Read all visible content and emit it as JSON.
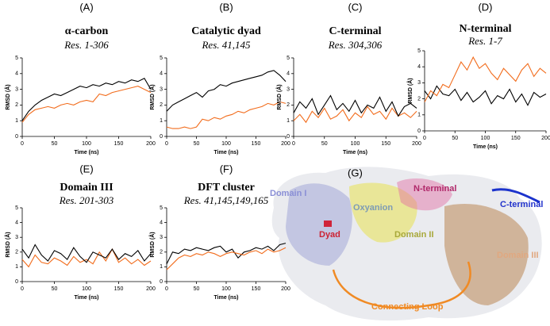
{
  "chart_data": [
    {
      "type": "line",
      "panel": "(A)",
      "title": "α-carbon",
      "subtitle": "Res. 1-306",
      "xlabel": "Time (ns)",
      "ylabel": "RMSD (Å)",
      "xlim": [
        0,
        200
      ],
      "xticks": [
        0,
        50,
        100,
        150,
        200
      ],
      "ylim": [
        0,
        5
      ],
      "yticks": [
        0,
        1,
        2,
        3,
        4,
        5
      ],
      "x": [
        0,
        10,
        20,
        30,
        40,
        50,
        60,
        70,
        80,
        90,
        100,
        110,
        120,
        130,
        140,
        150,
        160,
        170,
        180,
        190,
        200
      ],
      "series": [
        {
          "color": "#f26c1c",
          "values": [
            0.9,
            1.4,
            1.7,
            1.8,
            1.9,
            1.8,
            2.0,
            2.1,
            2.0,
            2.2,
            2.3,
            2.2,
            2.7,
            2.6,
            2.8,
            2.9,
            3.0,
            3.1,
            3.2,
            3.0,
            2.8
          ]
        },
        {
          "color": "#000000",
          "values": [
            1.0,
            1.6,
            2.0,
            2.3,
            2.5,
            2.7,
            2.6,
            2.8,
            3.0,
            3.2,
            3.1,
            3.3,
            3.2,
            3.4,
            3.3,
            3.5,
            3.4,
            3.6,
            3.5,
            3.7,
            3.0
          ]
        }
      ]
    },
    {
      "type": "line",
      "panel": "(B)",
      "title": "Catalytic dyad",
      "subtitle": "Res. 41,145",
      "xlabel": "Time (ns)",
      "ylabel": "RMSD (Å)",
      "xlim": [
        0,
        200
      ],
      "xticks": [
        0,
        50,
        100,
        150,
        200
      ],
      "ylim": [
        0,
        5
      ],
      "yticks": [
        0,
        1,
        2,
        3,
        4,
        5
      ],
      "x": [
        0,
        10,
        20,
        30,
        40,
        50,
        60,
        70,
        80,
        90,
        100,
        110,
        120,
        130,
        140,
        150,
        160,
        170,
        180,
        190,
        200
      ],
      "series": [
        {
          "color": "#f26c1c",
          "values": [
            0.6,
            0.5,
            0.5,
            0.6,
            0.5,
            0.6,
            1.1,
            1.0,
            1.2,
            1.1,
            1.3,
            1.4,
            1.6,
            1.5,
            1.7,
            1.8,
            1.9,
            2.1,
            2.0,
            2.2,
            2.1
          ]
        },
        {
          "color": "#000000",
          "values": [
            1.6,
            2.0,
            2.2,
            2.4,
            2.6,
            2.8,
            2.5,
            2.9,
            3.0,
            3.3,
            3.2,
            3.4,
            3.5,
            3.6,
            3.7,
            3.8,
            3.9,
            4.1,
            4.2,
            3.9,
            3.5
          ]
        }
      ]
    },
    {
      "type": "line",
      "panel": "(C)",
      "title": "C-terminal",
      "subtitle": "Res. 304,306",
      "xlabel": "Time (ns)",
      "ylabel": "RMSD (Å)",
      "xlim": [
        0,
        200
      ],
      "xticks": [
        0,
        50,
        100,
        150,
        200
      ],
      "ylim": [
        0,
        5
      ],
      "yticks": [
        0,
        1,
        2,
        3,
        4,
        5
      ],
      "x": [
        0,
        10,
        20,
        30,
        40,
        50,
        60,
        70,
        80,
        90,
        100,
        110,
        120,
        130,
        140,
        150,
        160,
        170,
        180,
        190,
        200
      ],
      "series": [
        {
          "color": "#f26c1c",
          "values": [
            1.0,
            1.4,
            0.9,
            1.6,
            1.2,
            1.8,
            1.1,
            1.3,
            1.7,
            1.0,
            1.5,
            1.2,
            1.9,
            1.4,
            1.6,
            1.1,
            1.8,
            1.3,
            1.5,
            1.2,
            1.6
          ]
        },
        {
          "color": "#000000",
          "values": [
            1.5,
            2.2,
            1.8,
            2.4,
            1.4,
            2.0,
            2.6,
            1.7,
            2.1,
            1.6,
            2.3,
            1.5,
            2.0,
            1.8,
            2.5,
            1.6,
            2.2,
            1.3,
            1.9,
            2.1,
            1.8
          ]
        }
      ]
    },
    {
      "type": "line",
      "panel": "(D)",
      "title": "N-terminal",
      "subtitle": "Res. 1-7",
      "xlabel": "Time (ns)",
      "ylabel": "RMSD (Å)",
      "xlim": [
        0,
        200
      ],
      "xticks": [
        0,
        50,
        100,
        150,
        200
      ],
      "ylim": [
        0,
        5
      ],
      "yticks": [
        0,
        1,
        2,
        3,
        4,
        5
      ],
      "x": [
        0,
        10,
        20,
        30,
        40,
        50,
        60,
        70,
        80,
        90,
        100,
        110,
        120,
        130,
        140,
        150,
        160,
        170,
        180,
        190,
        200
      ],
      "series": [
        {
          "color": "#000000",
          "values": [
            2.5,
            2.0,
            2.8,
            2.3,
            2.2,
            2.6,
            1.9,
            2.4,
            1.8,
            2.1,
            2.5,
            1.7,
            2.2,
            2.0,
            2.6,
            1.8,
            2.3,
            1.6,
            2.4,
            2.1,
            2.3
          ]
        },
        {
          "color": "#f26c1c",
          "values": [
            1.8,
            2.5,
            2.2,
            2.9,
            2.7,
            3.5,
            4.3,
            3.8,
            4.6,
            3.9,
            4.2,
            3.6,
            3.2,
            3.9,
            3.5,
            3.1,
            3.8,
            4.2,
            3.4,
            3.9,
            3.6
          ]
        }
      ]
    },
    {
      "type": "line",
      "panel": "(E)",
      "title": "Domain III",
      "subtitle": "Res. 201-303",
      "xlabel": "Time (ns)",
      "ylabel": "RMSD (Å)",
      "xlim": [
        0,
        200
      ],
      "xticks": [
        0,
        50,
        100,
        150,
        200
      ],
      "ylim": [
        0,
        5
      ],
      "yticks": [
        0,
        1,
        2,
        3,
        4,
        5
      ],
      "x": [
        0,
        10,
        20,
        30,
        40,
        50,
        60,
        70,
        80,
        90,
        100,
        110,
        120,
        130,
        140,
        150,
        160,
        170,
        180,
        190,
        200
      ],
      "series": [
        {
          "color": "#f26c1c",
          "values": [
            1.5,
            1.0,
            1.8,
            1.3,
            1.2,
            1.6,
            1.4,
            1.1,
            1.7,
            1.3,
            1.5,
            1.2,
            2.0,
            1.4,
            2.2,
            1.3,
            1.6,
            1.2,
            1.5,
            1.1,
            1.4
          ]
        },
        {
          "color": "#000000",
          "values": [
            2.2,
            1.6,
            2.5,
            1.8,
            1.4,
            2.1,
            1.9,
            1.5,
            2.3,
            1.7,
            1.3,
            2.0,
            1.8,
            1.6,
            2.2,
            1.5,
            1.9,
            1.7,
            2.1,
            1.4,
            1.9
          ]
        }
      ]
    },
    {
      "type": "line",
      "panel": "(F)",
      "title": "DFT cluster",
      "subtitle": "Res. 41,145,149,165",
      "xlabel": "Time (ns)",
      "ylabel": "RMSD (Å)",
      "xlim": [
        0,
        200
      ],
      "xticks": [
        0,
        50,
        100,
        150,
        200
      ],
      "ylim": [
        0,
        5
      ],
      "yticks": [
        0,
        1,
        2,
        3,
        4,
        5
      ],
      "x": [
        0,
        10,
        20,
        30,
        40,
        50,
        60,
        70,
        80,
        90,
        100,
        110,
        120,
        130,
        140,
        150,
        160,
        170,
        180,
        190,
        200
      ],
      "series": [
        {
          "color": "#000000",
          "values": [
            1.2,
            2.0,
            1.9,
            2.2,
            2.1,
            2.3,
            2.2,
            2.1,
            2.3,
            2.4,
            2.0,
            2.2,
            1.6,
            2.0,
            2.1,
            2.3,
            2.2,
            2.4,
            2.1,
            2.5,
            2.6
          ]
        },
        {
          "color": "#f26c1c",
          "values": [
            0.8,
            1.2,
            1.6,
            1.8,
            1.7,
            1.9,
            1.8,
            2.0,
            1.9,
            1.7,
            1.9,
            2.0,
            1.9,
            1.8,
            2.0,
            2.1,
            1.9,
            2.2,
            2.0,
            2.1,
            2.3
          ]
        }
      ]
    }
  ],
  "structure": {
    "panel": "(G)",
    "labels": [
      "Domain I",
      "N-terminal",
      "C-terminal",
      "Oxyanion",
      "Dyad",
      "Domain II",
      "Domain III",
      "Connecting Loop"
    ]
  }
}
